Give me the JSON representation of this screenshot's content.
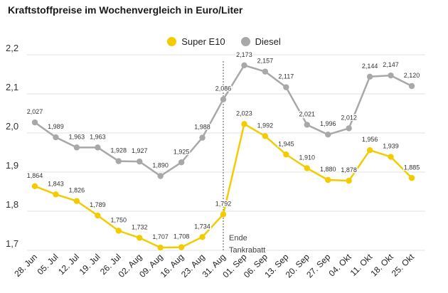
{
  "chart_data": {
    "type": "line",
    "title": "Kraftstoffpreise im Wochenvergleich in Euro/Liter",
    "categories": [
      "28. Jun",
      "05. Jul",
      "12. Jul",
      "19. Jul",
      "26. Jul",
      "02. Aug",
      "09. Aug",
      "16. Aug",
      "23. Aug",
      "31. Aug",
      "01. Sep",
      "06. Sep",
      "13. Sep",
      "20. Sep",
      "27. Sep",
      "04. Okt",
      "11. Okt",
      "18. Okt",
      "25. Okt"
    ],
    "series": [
      {
        "name": "Super E10",
        "color": "#f2cc00",
        "values": [
          1.864,
          1.843,
          1.826,
          1.789,
          1.75,
          1.732,
          1.707,
          1.708,
          1.734,
          1.792,
          2.023,
          1.992,
          1.945,
          1.91,
          1.88,
          1.878,
          1.956,
          1.939,
          1.885
        ],
        "labels": [
          "1,864",
          "1,843",
          "1,826",
          "1,789",
          "1,750",
          "1,732",
          "1,707",
          "1,708",
          "1,734",
          "1,792",
          "2,023",
          "1,992",
          "1,945",
          "1,910",
          "1,880",
          "1,878",
          "1,956",
          "1,939",
          "1,885"
        ]
      },
      {
        "name": "Diesel",
        "color": "#a8a8a8",
        "values": [
          2.027,
          1.989,
          1.963,
          1.963,
          1.928,
          1.927,
          1.89,
          1.925,
          1.988,
          2.086,
          2.173,
          2.157,
          2.117,
          2.021,
          1.996,
          2.012,
          2.144,
          2.147,
          2.12
        ],
        "labels": [
          "2,027",
          "1,989",
          "1,963",
          "1,963",
          "1,928",
          "1,927",
          "1,890",
          "1,925",
          "1,988",
          "2,086",
          "2,173",
          "2,157",
          "2,117",
          "2,021",
          "1,996",
          "2,012",
          "2,144",
          "2,147",
          "2,120"
        ]
      }
    ],
    "yticks": [
      1.7,
      1.8,
      1.9,
      2.0,
      2.1,
      2.2
    ],
    "ytick_labels": [
      "1,7",
      "1,8",
      "1,9",
      "2,0",
      "2,1",
      "2,2"
    ],
    "ylim": [
      1.7,
      2.2
    ],
    "grid": true,
    "legend": "top-center",
    "annotation": {
      "line1": "Ende",
      "line2": "Tankrabatt",
      "x_category": "31. Aug"
    }
  }
}
